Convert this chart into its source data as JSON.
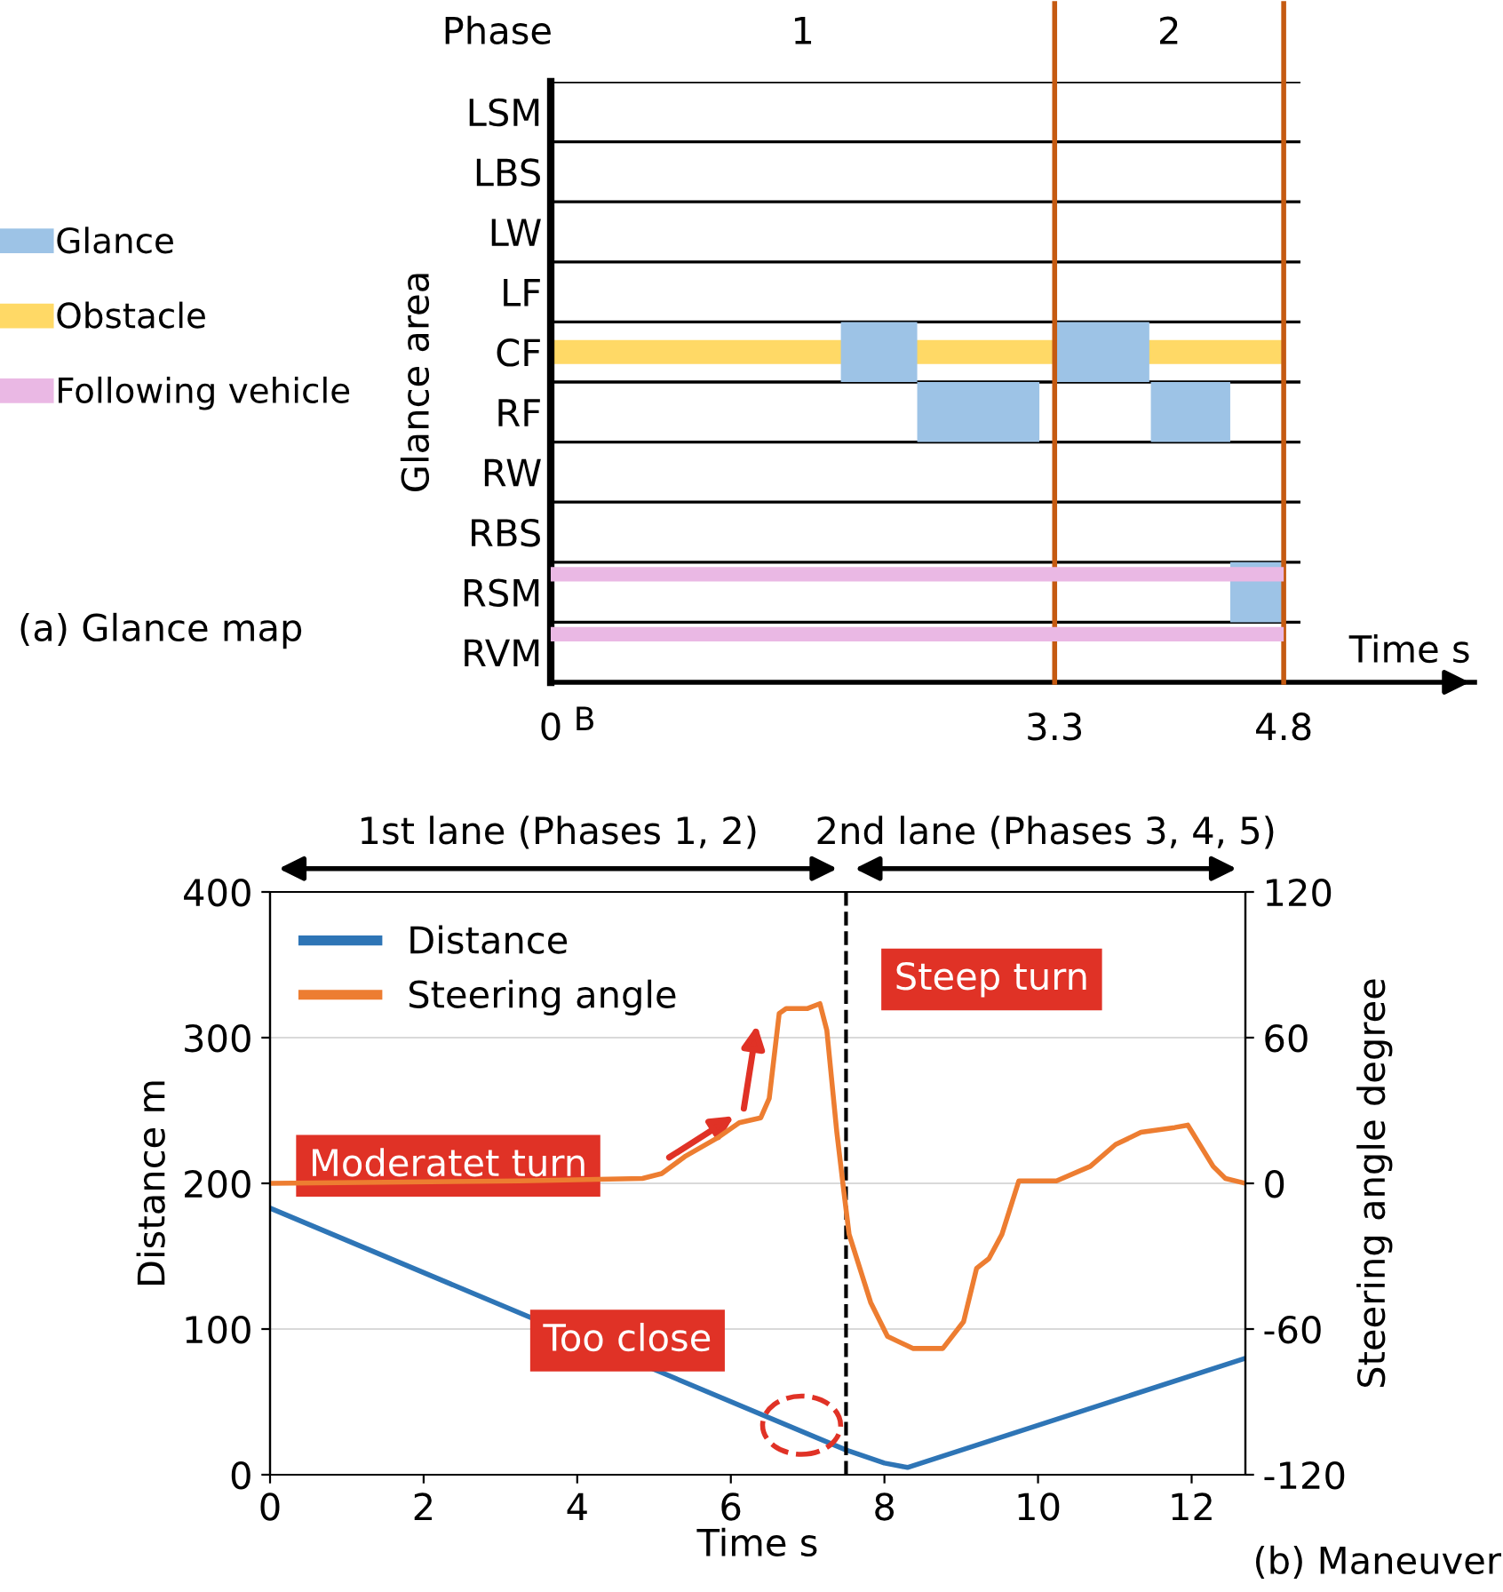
{
  "chart_data": [
    {
      "type": "bar",
      "orientation": "horizontal",
      "ylabel": "Glance area",
      "xlabel": "Time s",
      "categories": [
        "LSM",
        "LBS",
        "LW",
        "LF",
        "CF",
        "RF",
        "RW",
        "RBS",
        "RSM",
        "RVM"
      ],
      "series": [
        {
          "name": "Glance",
          "color": "#9dc3e6",
          "values": [
            null,
            null,
            null,
            null,
            0.5,
            0.8,
            null,
            null,
            0.35,
            null
          ],
          "base": [
            null,
            null,
            null,
            null,
            1.9,
            2.4,
            null,
            null,
            4.45,
            null
          ]
        },
        {
          "color": "#9dc3e6",
          "values": [
            null,
            null,
            null,
            null,
            0.62,
            0.52,
            null,
            null,
            null,
            null
          ],
          "base": [
            null,
            null,
            null,
            null,
            3.3,
            3.93,
            null,
            null,
            null,
            null
          ]
        },
        {
          "name": "Obstacle",
          "color": "#ffd966",
          "values": [
            null,
            null,
            null,
            null,
            4.8,
            null,
            null,
            null,
            null,
            null
          ],
          "base": [
            null,
            null,
            null,
            null,
            0,
            null,
            null,
            null,
            null,
            null
          ]
        },
        {
          "name": "Following vehicle",
          "color": "#eab8e4",
          "values": [
            null,
            null,
            null,
            null,
            null,
            null,
            null,
            null,
            4.8,
            4.8
          ],
          "base": [
            null,
            null,
            null,
            null,
            null,
            null,
            null,
            null,
            0,
            0
          ]
        }
      ],
      "xlim": [
        0,
        6.05
      ],
      "xticks": [
        0,
        3.3,
        4.8
      ],
      "grid": "y",
      "legend": "left",
      "ref_lines": [
        {
          "axis": "x",
          "value": 3.3,
          "color": "#c55a11"
        },
        {
          "axis": "x",
          "value": 4.8,
          "color": "#c55a11"
        }
      ],
      "annotations": [
        "Phase",
        "1",
        "2",
        "B",
        "(a) Glance map"
      ]
    },
    {
      "type": "line",
      "xlabel": "Time s",
      "ylabel": "Distance m",
      "y2label": "Steering angle degree",
      "series": [
        {
          "name": "Distance",
          "color": "#2e75b6",
          "x": [
            0,
            7.5,
            8.0,
            8.3,
            12.7
          ],
          "values": [
            183,
            17,
            8,
            5,
            80
          ]
        },
        {
          "name": "Steering angle",
          "color": "#ed7d31",
          "axis": "y2",
          "x": [
            0,
            3.25,
            4.85,
            5.1,
            5.4,
            5.84,
            6.11,
            6.39,
            6.5,
            6.63,
            6.72,
            7.0,
            7.16,
            7.25,
            7.38,
            7.47,
            7.54,
            7.82,
            8.04,
            8.37,
            8.76,
            9.03,
            9.2,
            9.36,
            9.53,
            9.75,
            10.24,
            10.68,
            11.01,
            11.34,
            11.78,
            11.95,
            12.28,
            12.44,
            12.7
          ],
          "values": [
            0,
            1,
            2,
            4,
            11,
            19,
            25,
            27,
            35,
            70,
            72,
            72,
            74,
            63,
            21,
            -3,
            -21,
            -49,
            -63,
            -68,
            -68,
            -57,
            -35,
            -31,
            -21,
            1,
            1,
            7,
            16,
            21,
            23,
            24,
            7,
            2,
            0
          ]
        }
      ],
      "xlim": [
        0,
        12.7
      ],
      "xticks": [
        0,
        2,
        4,
        6,
        8,
        10,
        12
      ],
      "ylim": [
        0,
        400
      ],
      "yticks": [
        0,
        100,
        200,
        300,
        400
      ],
      "y2lim": [
        -120,
        120
      ],
      "y2ticks": [
        -120,
        -60,
        0,
        60,
        120
      ],
      "grid": "y",
      "legend": "top left",
      "ref_lines": [
        {
          "axis": "x",
          "value": 7.5,
          "color": "#000000",
          "line_style": "dashed"
        }
      ],
      "annotations": [
        "1st lane (Phases 1, 2)",
        "2nd lane (Phases 3, 4, 5)",
        "Steep turn",
        "Moderatet turn",
        "Too close",
        "(b) Maneuver"
      ]
    }
  ]
}
